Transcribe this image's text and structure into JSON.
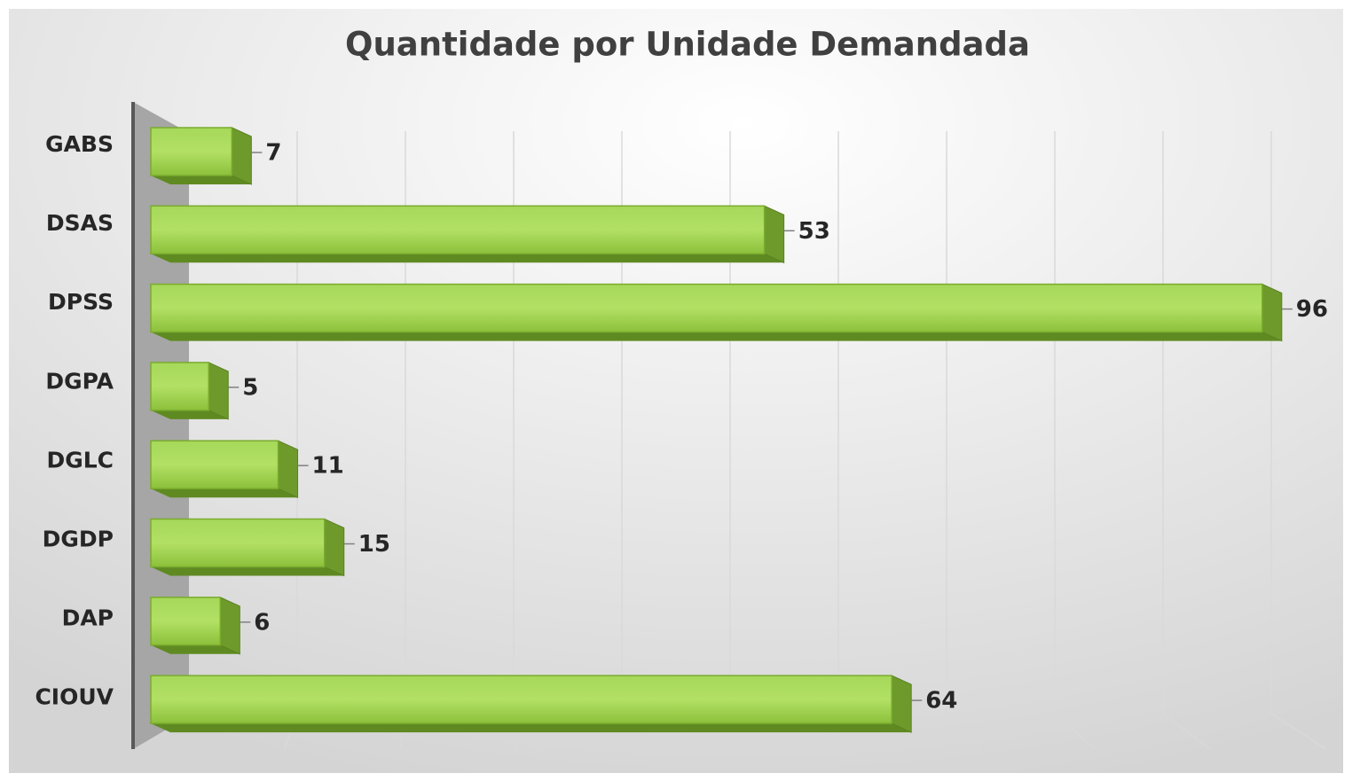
{
  "chart_data": {
    "type": "bar",
    "orientation": "horizontal",
    "title": "Quantidade por Unidade Demandada",
    "categories": [
      "GABS",
      "DSAS",
      "DPSS",
      "DGPA",
      "DGLC",
      "DGDP",
      "DAP",
      "CIOUV"
    ],
    "values": [
      7,
      53,
      96,
      5,
      11,
      15,
      6,
      64
    ],
    "color": "#92c83e",
    "xlim": [
      0,
      100
    ],
    "xticks": [
      0,
      10,
      20,
      30,
      40,
      50,
      60,
      70,
      80,
      90,
      100
    ],
    "grid": true
  }
}
